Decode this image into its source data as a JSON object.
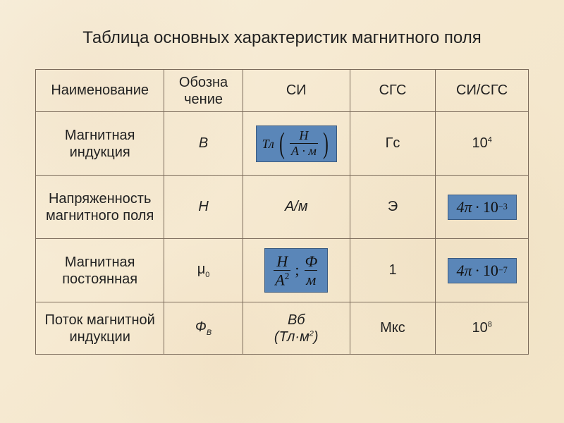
{
  "title": "Таблица основных характеристик магнитного поля",
  "table": {
    "headers": {
      "name": "Наименование",
      "symbol": "Обозна\nчение",
      "si": "СИ",
      "cgs": "СГС",
      "ratio": "СИ/СГС"
    },
    "rows": {
      "induction": {
        "name_l1": "Магнитная",
        "name_l2": "индукция",
        "symbol": "B",
        "si_prefix": "Тл",
        "si_frac_num": "Н",
        "si_frac_den": "А · м",
        "cgs": "Гс",
        "ratio_base": "10",
        "ratio_exp": "4"
      },
      "field_strength": {
        "name_l1": "Напряженность",
        "name_l2": "магнитного поля",
        "symbol": "H",
        "si": "А/м",
        "cgs": "Э",
        "ratio_coef": "4π",
        "ratio_dot": "·",
        "ratio_base": "10",
        "ratio_exp": "−3"
      },
      "mu": {
        "name_l1": "Магнитная",
        "name_l2": "постоянная",
        "symbol_main": "μ",
        "symbol_sub": "0",
        "si_frac1_num": "Н",
        "si_frac1_den": "А",
        "si_frac1_den_exp": "2",
        "si_sep": ";",
        "si_frac2_num": "Ф",
        "si_frac2_den": "м",
        "cgs": "1",
        "ratio_coef": "4π",
        "ratio_dot": "·",
        "ratio_base": "10",
        "ratio_exp": "−7"
      },
      "flux": {
        "name_l1": "Поток магнитной",
        "name_l2": "индукции",
        "symbol_main": "Ф",
        "symbol_sub": "В",
        "si_l1": "Вб",
        "si_l2_open": "(",
        "si_l2_unit": "Тл·м",
        "si_l2_exp": "2",
        "si_l2_close": ")",
        "cgs": "Мкс",
        "ratio_base": "10",
        "ratio_exp": "8"
      }
    }
  },
  "style": {
    "badge_bg": "#5a86b8",
    "border_color": "#7a6a5a",
    "title_fontsize": 24,
    "cell_fontsize": 20
  }
}
